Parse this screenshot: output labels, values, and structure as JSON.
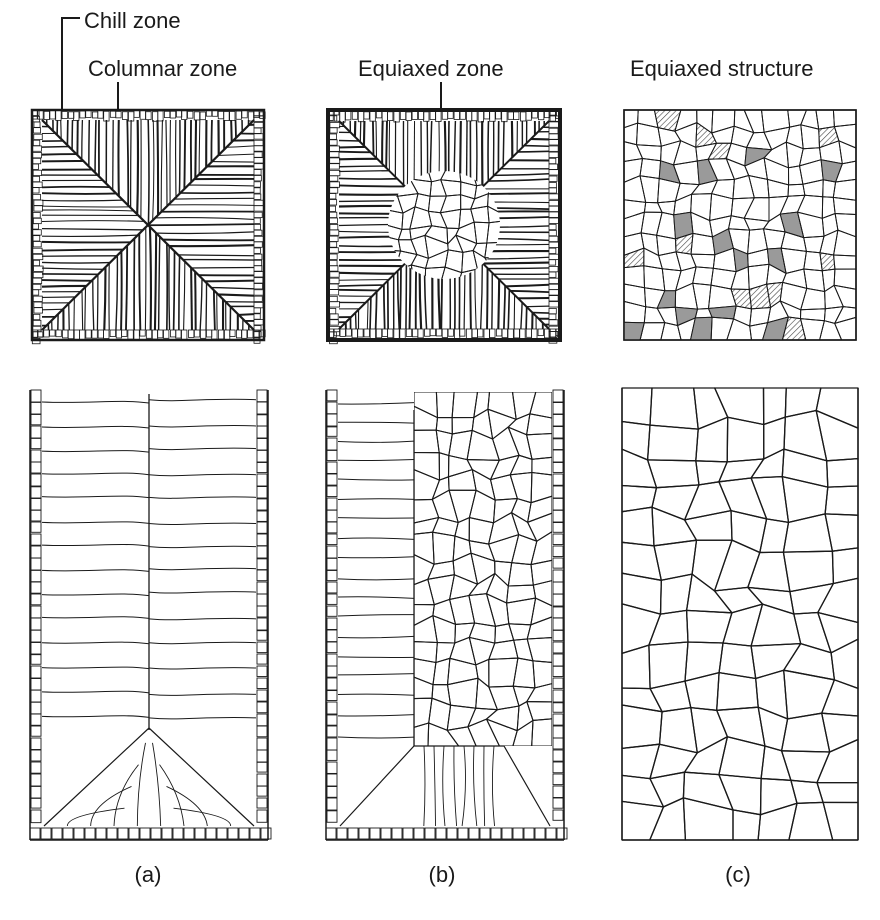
{
  "labels": {
    "chill_zone": "Chill zone",
    "columnar_zone": "Columnar zone",
    "equiaxed_zone": "Equiaxed zone",
    "equiaxed_structure": "Equiaxed structure"
  },
  "captions": {
    "a": "(a)",
    "b": "(b)",
    "c": "(c)"
  },
  "colors": {
    "ink": "#1a1a1a",
    "background": "#ffffff",
    "hatch": "#555555"
  }
}
